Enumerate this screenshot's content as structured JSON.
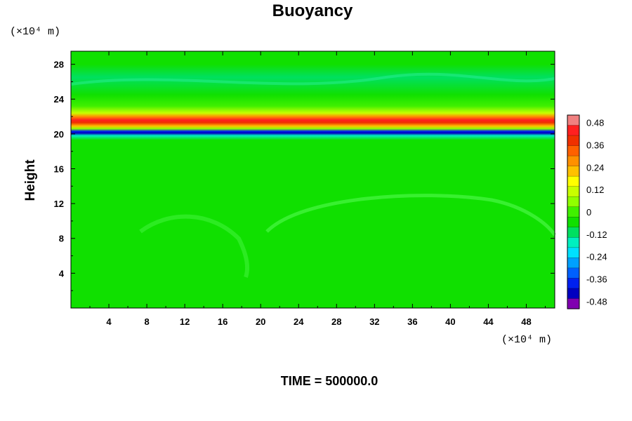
{
  "chart_data": {
    "type": "heatmap",
    "title": "Buoyancy",
    "ylabel": "Height",
    "x_unit_label": "(×10⁴ m)",
    "y_unit_label": "(×10⁴ m)",
    "xlim": [
      0,
      51
    ],
    "ylim": [
      0,
      29.5
    ],
    "x_ticks": [
      4,
      8,
      12,
      16,
      20,
      24,
      28,
      32,
      36,
      40,
      44,
      48
    ],
    "y_ticks": [
      4,
      8,
      12,
      16,
      20,
      24,
      28
    ],
    "colorbar": {
      "range": [
        -0.52,
        0.52
      ],
      "ticks": [
        0.48,
        0.36,
        0.24,
        0.12,
        0,
        -0.12,
        -0.24,
        -0.36,
        -0.48
      ],
      "colors": [
        "#f08080",
        "#ff2020",
        "#f03000",
        "#ff6000",
        "#ff9000",
        "#ffc000",
        "#ffff00",
        "#c8ff00",
        "#90ff00",
        "#40f000",
        "#10e000",
        "#00e060",
        "#00f0c0",
        "#00e0ff",
        "#00a0ff",
        "#0060ff",
        "#0020f0",
        "#0000c0",
        "#8000b0"
      ]
    },
    "field_profile": [
      {
        "height": 0.0,
        "value": -0.04
      },
      {
        "height": 19.3,
        "value": -0.04
      },
      {
        "height": 19.8,
        "value": -0.14
      },
      {
        "height": 20.1,
        "value": -0.44
      },
      {
        "height": 20.3,
        "value": -0.36
      },
      {
        "height": 20.6,
        "value": 0.04
      },
      {
        "height": 20.9,
        "value": 0.24
      },
      {
        "height": 21.3,
        "value": 0.4
      },
      {
        "height": 21.6,
        "value": 0.44
      },
      {
        "height": 22.0,
        "value": 0.3
      },
      {
        "height": 22.4,
        "value": 0.12
      },
      {
        "height": 23.2,
        "value": 0.02
      },
      {
        "height": 24.5,
        "value": -0.06
      },
      {
        "height": 26.5,
        "value": -0.1
      },
      {
        "height": 28.0,
        "value": -0.07
      },
      {
        "height": 29.5,
        "value": -0.04
      }
    ],
    "annotation": "TIME = 500000.0"
  }
}
